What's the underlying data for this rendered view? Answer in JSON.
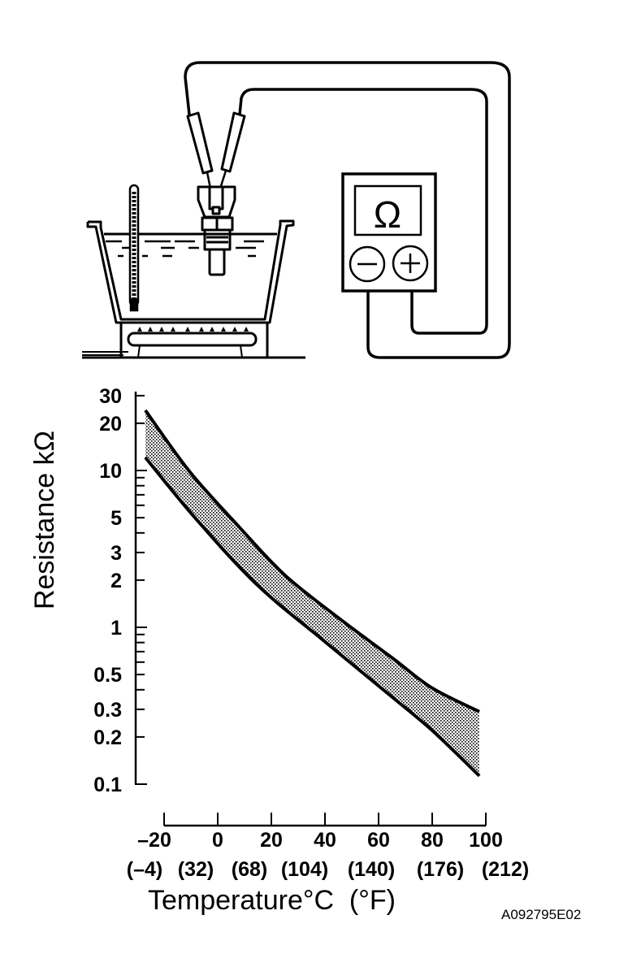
{
  "illustration": {
    "meter_symbol": "Ω",
    "meter_terminals": [
      "minus-icon",
      "plus-icon"
    ],
    "items": [
      "thermometer",
      "water-pot",
      "stove-burner",
      "temperature-sensor",
      "ohmmeter",
      "test-leads"
    ]
  },
  "chart_data": {
    "type": "area",
    "title": "",
    "xlabel": "Temperature°C  (°F)",
    "ylabel": "Resistance kΩ",
    "yscale": "log",
    "xlim": [
      -27,
      100
    ],
    "ylim": [
      0.1,
      30
    ],
    "grid": false,
    "x_ticks": [
      -20,
      0,
      20,
      40,
      60,
      80,
      100
    ],
    "x_tick_labels": [
      "–20",
      "0",
      "20",
      "40",
      "60",
      "80",
      "100"
    ],
    "x_tick_labels_f": [
      "(–4)",
      "(32)",
      "(68)",
      "(104)",
      "(140)",
      "(176)",
      "(212)"
    ],
    "y_tick_values": [
      0.1,
      0.2,
      0.3,
      0.4,
      0.5,
      0.6,
      0.7,
      0.8,
      0.9,
      1,
      2,
      3,
      4,
      5,
      6,
      7,
      8,
      9,
      10,
      20,
      30
    ],
    "y_labels": [
      {
        "value": 30,
        "label": "30"
      },
      {
        "value": 20,
        "label": "20"
      },
      {
        "value": 10,
        "label": "10"
      },
      {
        "value": 5,
        "label": "5"
      },
      {
        "value": 3,
        "label": "3"
      },
      {
        "value": 2,
        "label": "2"
      },
      {
        "value": 1,
        "label": "1"
      },
      {
        "value": 0.5,
        "label": "0.5"
      },
      {
        "value": 0.3,
        "label": "0.3"
      },
      {
        "value": 0.2,
        "label": "0.2"
      },
      {
        "value": 0.1,
        "label": "0.1"
      }
    ],
    "series": [
      {
        "x": [
          -27,
          -10.6,
          7.6,
          24.8,
          45,
          65,
          80,
          97.6
        ],
        "y": [
          24.2,
          9.9,
          4.44,
          2.17,
          1.15,
          0.64,
          0.41,
          0.29
        ]
      },
      {
        "x": [
          -27,
          -8.5,
          14.8,
          40,
          65,
          80,
          97.6
        ],
        "y": [
          12.1,
          5.0,
          1.86,
          0.81,
          0.36,
          0.22,
          0.113
        ]
      }
    ],
    "band_fill": "dotted"
  },
  "figure_code": "A092795E02"
}
